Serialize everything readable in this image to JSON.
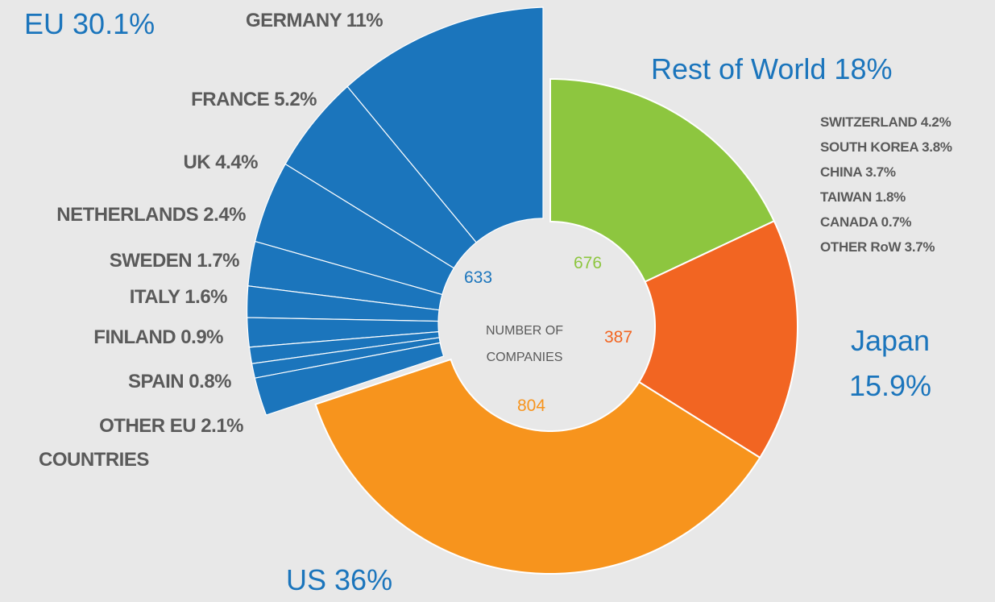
{
  "chart_data": {
    "type": "donut",
    "center_label": [
      "NUMBER OF",
      "COMPANIES"
    ],
    "categories": [
      "Rest of World",
      "Japan",
      "US",
      "EU"
    ],
    "values": [
      18,
      15.9,
      36,
      30.1
    ],
    "value_labels": [
      "18%",
      "15.9%",
      "36%",
      "30.1%"
    ],
    "counts": [
      676,
      387,
      804,
      633
    ],
    "colors": [
      "#8dc63f",
      "#f26522",
      "#f7941d",
      "#1b75bc"
    ],
    "eu_breakdown": {
      "categories": [
        "GERMANY",
        "FRANCE",
        "UK",
        "NETHERLANDS",
        "SWEDEN",
        "ITALY",
        "FINLAND",
        "SPAIN",
        [
          "OTHER EU",
          "COUNTRIES"
        ]
      ],
      "values": [
        11,
        5.2,
        4.4,
        2.4,
        1.7,
        1.6,
        0.9,
        0.8,
        2.1
      ],
      "value_labels": [
        "11%",
        "5.2%",
        "4.4%",
        "2.4%",
        "1.7%",
        "1.6%",
        "0.9%",
        "0.8%",
        "2.1%"
      ]
    },
    "row_breakdown": {
      "categories": [
        "SWITZERLAND",
        "SOUTH KOREA",
        "CHINA",
        "TAIWAN",
        "CANADA",
        "OTHER RoW"
      ],
      "value_labels": [
        "4.2%",
        "3.8%",
        "3.7%",
        "1.8%",
        "0.7%",
        "3.7%"
      ]
    }
  }
}
